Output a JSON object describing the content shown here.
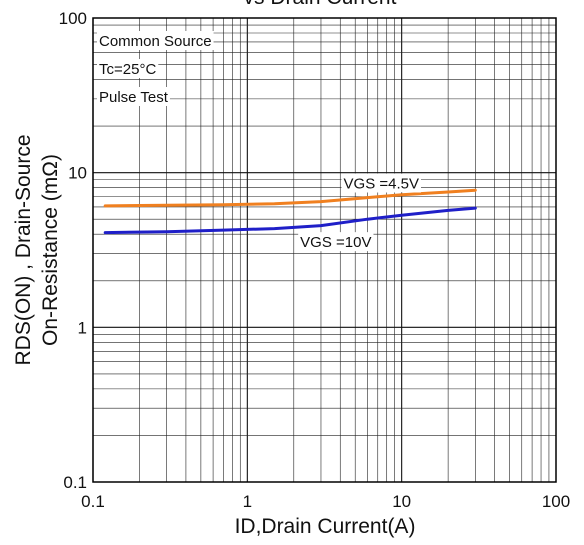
{
  "chart_data": {
    "type": "line",
    "title": "vs Drain Current",
    "xlabel": "ID,Drain Current(A)",
    "ylabel": "RDS(ON) , Drain-Source\nOn-Resistance (mΩ)",
    "x_scale": "log",
    "y_scale": "log",
    "xlim": [
      0.1,
      100
    ],
    "ylim": [
      0.1,
      100
    ],
    "x_ticks": [
      "0.1",
      "1",
      "10",
      "100"
    ],
    "y_ticks": [
      "0.1",
      "1",
      "10",
      "100"
    ],
    "grid": true,
    "annotations": [
      "Common Source",
      "Tc=25°C",
      "Pulse Test"
    ],
    "series": [
      {
        "name": "VGS =4.5V",
        "color": "#f08020",
        "x": [
          0.12,
          0.3,
          0.7,
          1.5,
          3,
          6,
          10,
          20,
          30
        ],
        "y": [
          6.1,
          6.15,
          6.2,
          6.3,
          6.5,
          6.9,
          7.2,
          7.5,
          7.7
        ]
      },
      {
        "name": "VGS =10V",
        "color": "#1f1fc8",
        "x": [
          0.12,
          0.3,
          0.7,
          1.5,
          3,
          6,
          10,
          20,
          30
        ],
        "y": [
          4.1,
          4.15,
          4.25,
          4.35,
          4.55,
          5.0,
          5.3,
          5.7,
          5.9
        ]
      }
    ]
  }
}
